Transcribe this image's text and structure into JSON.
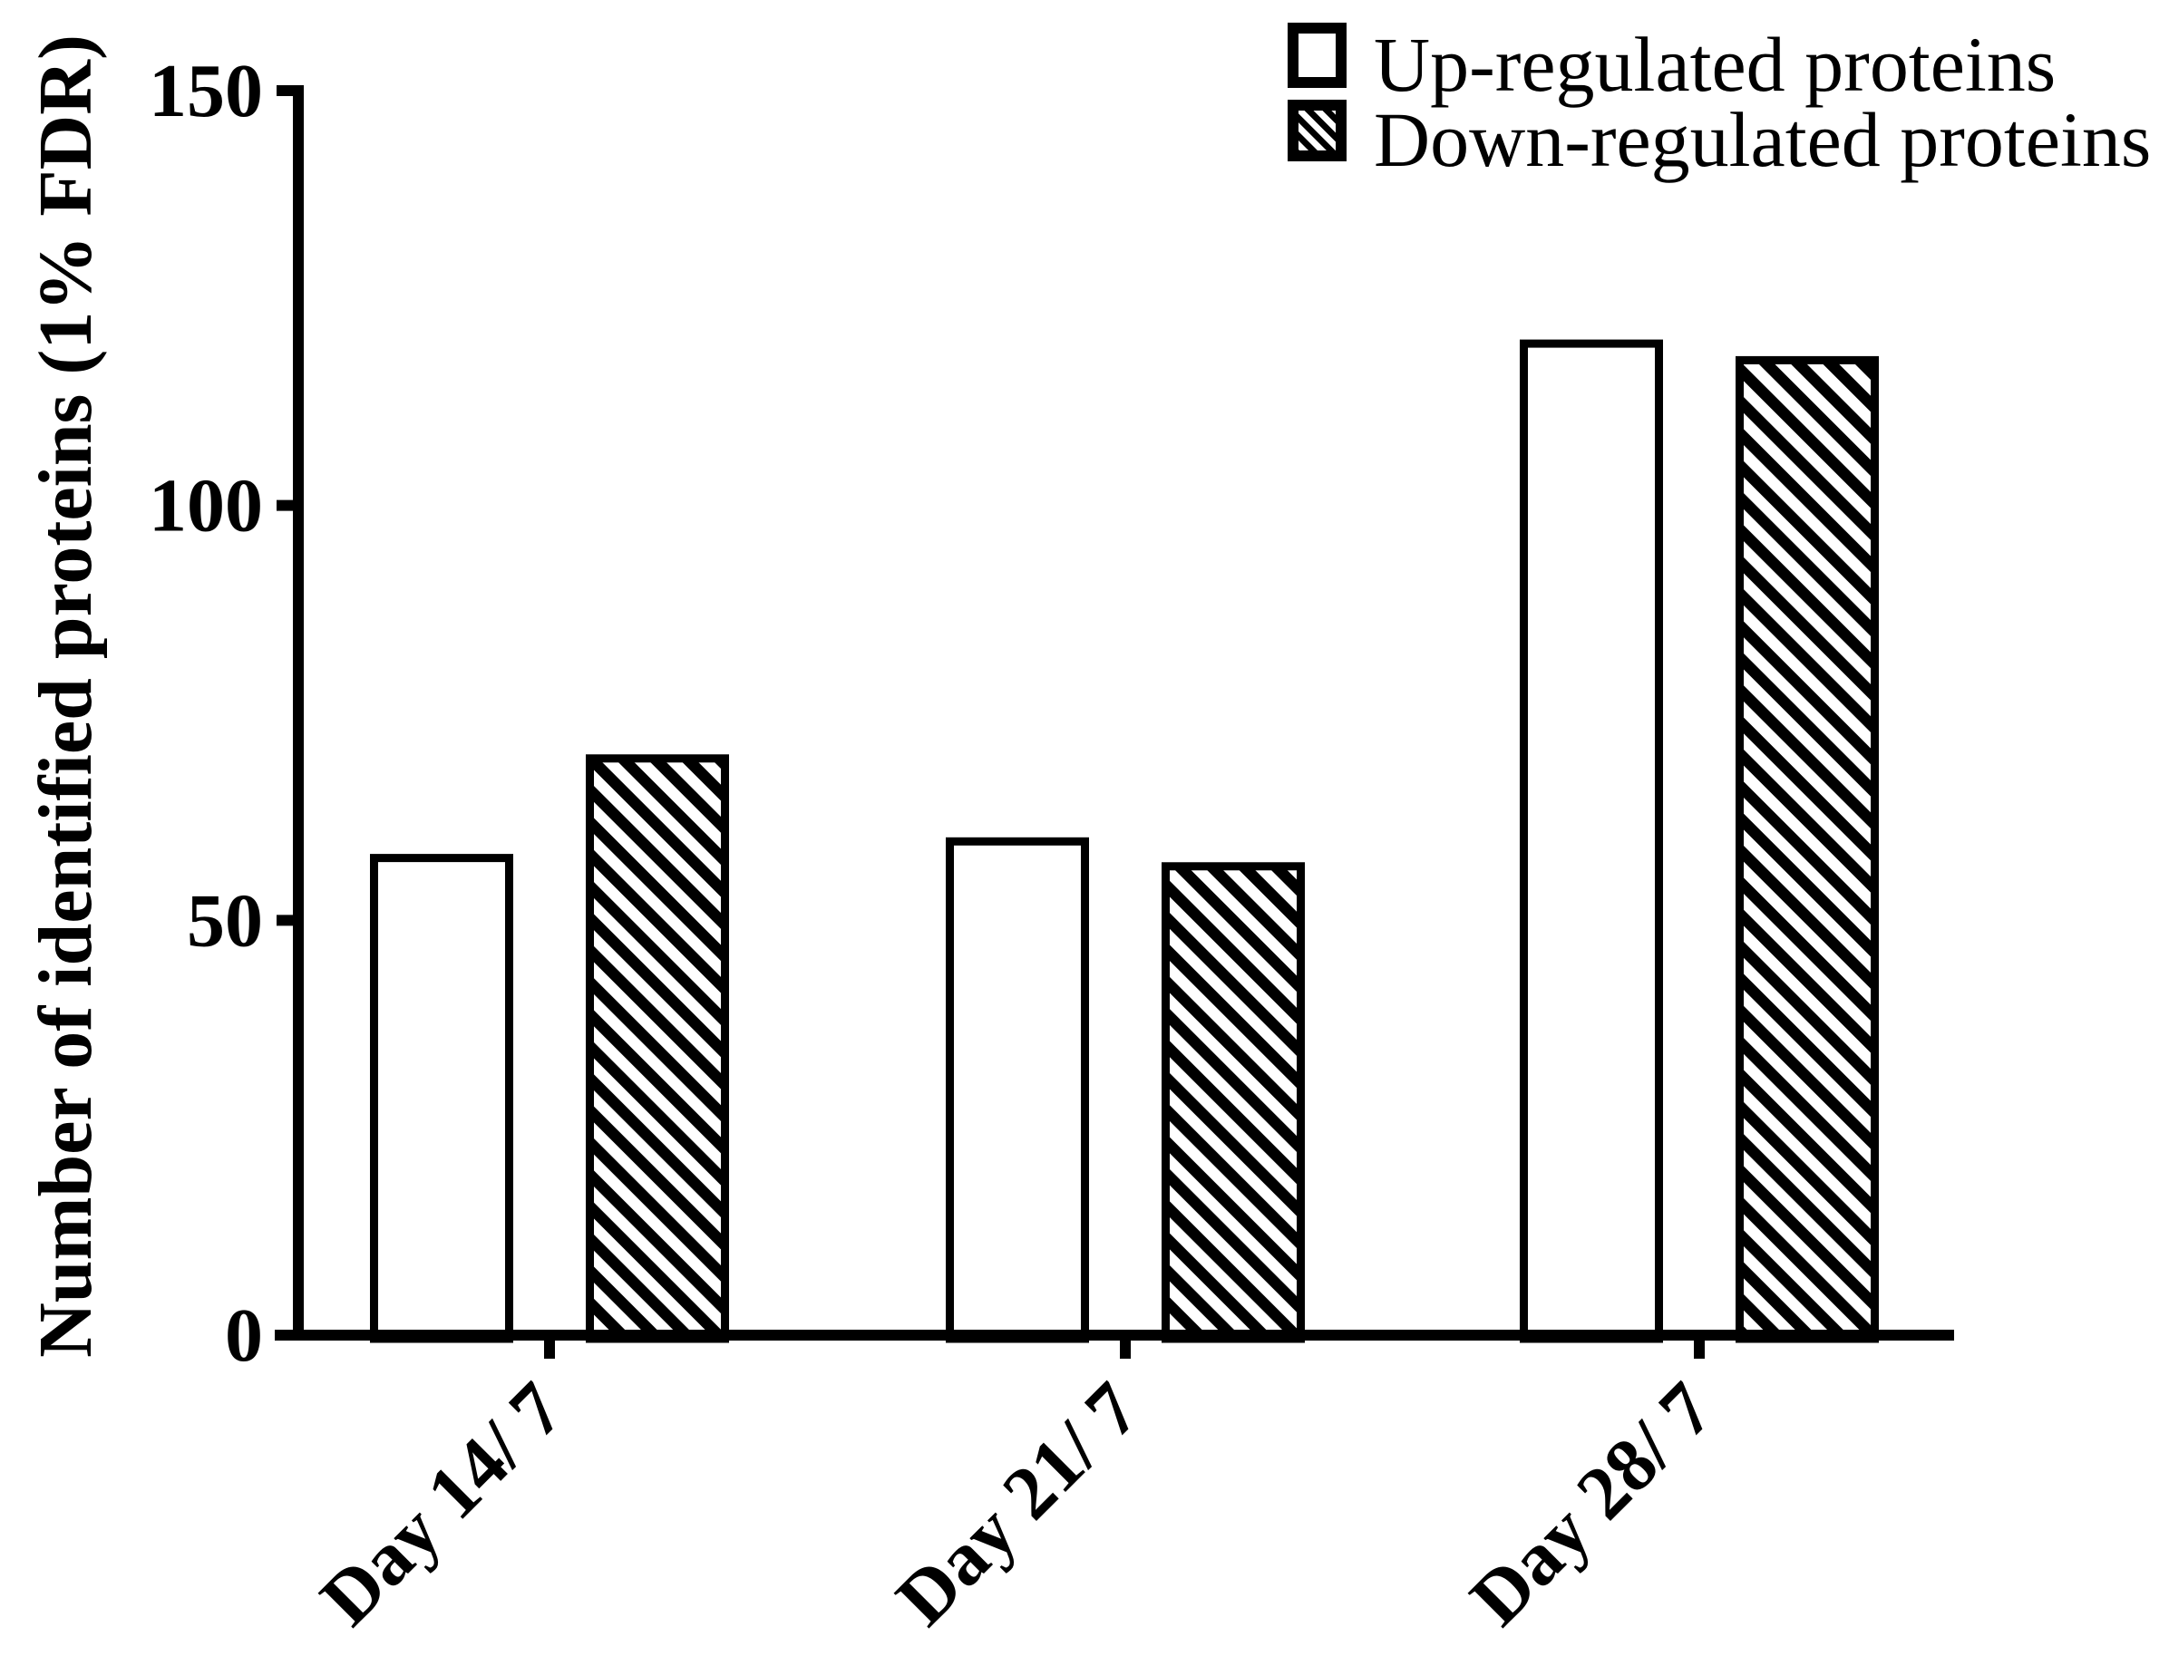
{
  "chart_data": {
    "type": "bar",
    "title": "",
    "categories": [
      "Day 14/ 7",
      "Day 21/ 7",
      "Day 28/ 7"
    ],
    "series": [
      {
        "name": "Up-regulated proteins",
        "pattern": "open",
        "values": [
          58,
          60,
          120
        ]
      },
      {
        "name": "Down-regulated proteins",
        "pattern": "diagonal-hatch",
        "values": [
          70,
          57,
          118
        ]
      }
    ],
    "xlabel": "",
    "ylabel": "Number of identified proteins (1% FDR)",
    "yticks": [
      0,
      50,
      100,
      150
    ],
    "ylim": [
      0,
      150
    ],
    "grid": false,
    "legend_position": "top-right",
    "colors": {
      "foreground": "#000000",
      "background": "#ffffff",
      "up_bar_fill": "#ffffff",
      "down_bar_fill": "black-diagonal-hatch"
    }
  }
}
